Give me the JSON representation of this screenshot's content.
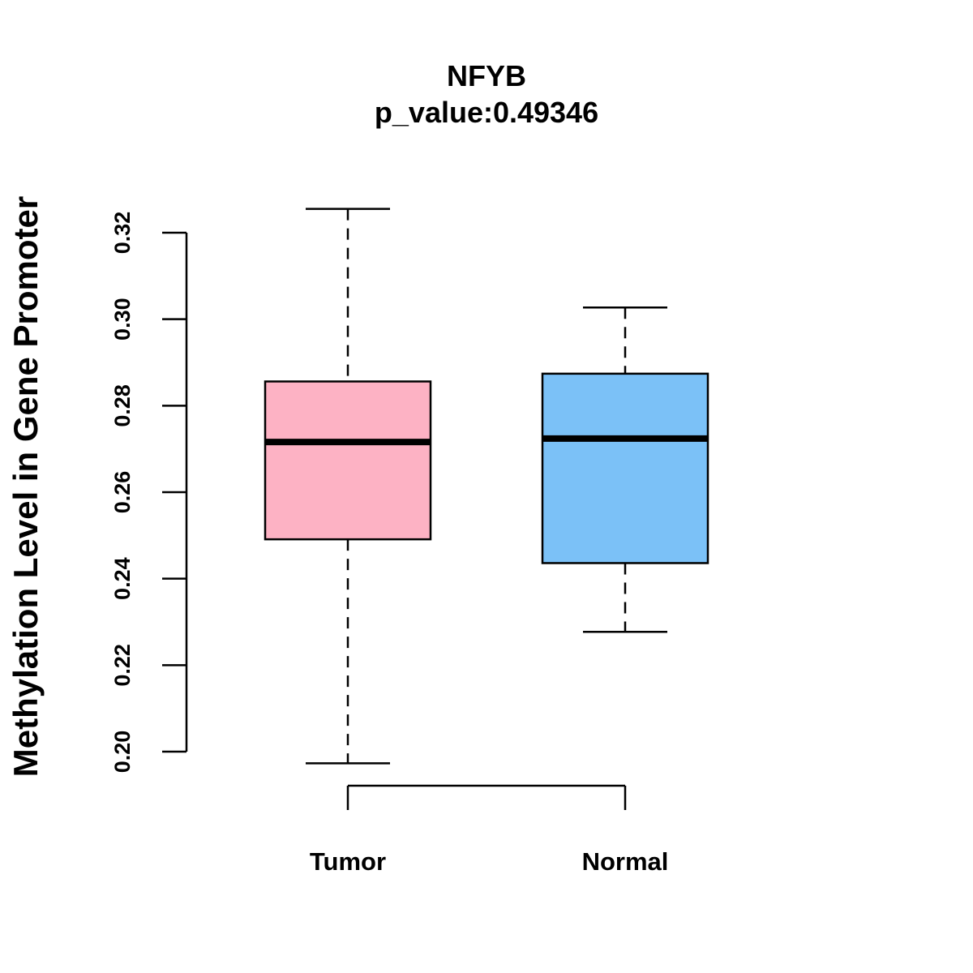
{
  "chart_data": {
    "type": "box",
    "title": "NFYB",
    "subtitle": "p_value:0.49346",
    "ylabel": "Methylation Level in Gene Promoter",
    "xlabel": "",
    "ylim": [
      0.2,
      0.32
    ],
    "yticks": [
      "0.20",
      "0.22",
      "0.24",
      "0.26",
      "0.28",
      "0.30",
      "0.32"
    ],
    "categories": [
      "Tumor",
      "Normal"
    ],
    "boxes": [
      {
        "name": "Tumor",
        "min": 0.1973,
        "q1": 0.2491,
        "median": 0.2716,
        "q3": 0.2856,
        "max": 0.3255,
        "color": "#fdb2c4"
      },
      {
        "name": "Normal",
        "min": 0.2277,
        "q1": 0.2436,
        "median": 0.2724,
        "q3": 0.2874,
        "max": 0.3027,
        "color": "#7bc1f7"
      }
    ]
  }
}
